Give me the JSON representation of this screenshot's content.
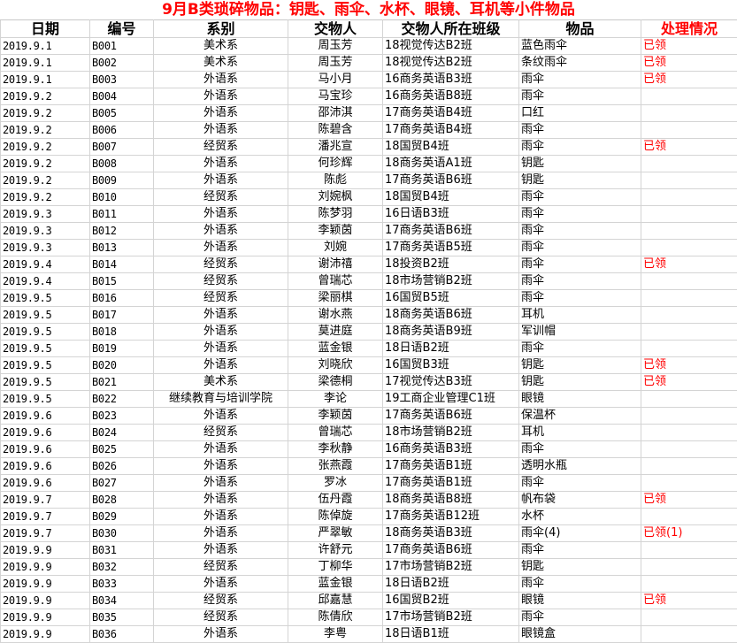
{
  "title": "9月B类琐碎物品：钥匙、雨伞、水杯、眼镜、耳机等小件物品",
  "headers": [
    "日期",
    "编号",
    "系别",
    "交物人",
    "交物人所在班级",
    "物品",
    "处理情况"
  ],
  "accent_color": "#ff0000",
  "rows": [
    [
      "2019.9.1",
      "B001",
      "美术系",
      "周玉芳",
      "18视觉传达B2班",
      "蓝色雨伞",
      "已领"
    ],
    [
      "2019.9.1",
      "B002",
      "美术系",
      "周玉芳",
      "18视觉传达B2班",
      "条纹雨伞",
      "已领"
    ],
    [
      "2019.9.1",
      "B003",
      "外语系",
      "马小月",
      "16商务英语B3班",
      "雨伞",
      "已领"
    ],
    [
      "2019.9.2",
      "B004",
      "外语系",
      "马宝珍",
      "16商务英语B8班",
      "雨伞",
      ""
    ],
    [
      "2019.9.2",
      "B005",
      "外语系",
      "邵沛淇",
      "17商务英语B4班",
      "口红",
      ""
    ],
    [
      "2019.9.2",
      "B006",
      "外语系",
      "陈碧含",
      "17商务英语B4班",
      "雨伞",
      ""
    ],
    [
      "2019.9.2",
      "B007",
      "经贸系",
      "潘兆宣",
      "18国贸B4班",
      "雨伞",
      "已领"
    ],
    [
      "2019.9.2",
      "B008",
      "外语系",
      "何珍辉",
      "18商务英语A1班",
      "钥匙",
      ""
    ],
    [
      "2019.9.2",
      "B009",
      "外语系",
      "陈彪",
      "17商务英语B6班",
      "钥匙",
      ""
    ],
    [
      "2019.9.2",
      "B010",
      "经贸系",
      "刘婉枫",
      "18国贸B4班",
      "雨伞",
      ""
    ],
    [
      "2019.9.3",
      "B011",
      "外语系",
      "陈梦羽",
      "16日语B3班",
      "雨伞",
      ""
    ],
    [
      "2019.9.3",
      "B012",
      "外语系",
      "李颖茵",
      "17商务英语B6班",
      "雨伞",
      ""
    ],
    [
      "2019.9.3",
      "B013",
      "外语系",
      "刘婉",
      "17商务英语B5班",
      "雨伞",
      ""
    ],
    [
      "2019.9.4",
      "B014",
      "经贸系",
      "谢沛禧",
      "18投资B2班",
      "雨伞",
      "已领"
    ],
    [
      "2019.9.4",
      "B015",
      "经贸系",
      "曾瑞芯",
      "18市场营销B2班",
      "雨伞",
      ""
    ],
    [
      "2019.9.5",
      "B016",
      "经贸系",
      "梁丽棋",
      "16国贸B5班",
      "雨伞",
      ""
    ],
    [
      "2019.9.5",
      "B017",
      "外语系",
      "谢水燕",
      "18商务英语B6班",
      "耳机",
      ""
    ],
    [
      "2019.9.5",
      "B018",
      "外语系",
      "莫进庭",
      "18商务英语B9班",
      "军训帽",
      ""
    ],
    [
      "2019.9.5",
      "B019",
      "外语系",
      "蓝金银",
      "18日语B2班",
      "雨伞",
      ""
    ],
    [
      "2019.9.5",
      "B020",
      "外语系",
      "刘晓欣",
      "16国贸B3班",
      "钥匙",
      "已领"
    ],
    [
      "2019.9.5",
      "B021",
      "美术系",
      "梁德桐",
      "17视觉传达B3班",
      "钥匙",
      "已领"
    ],
    [
      "2019.9.5",
      "B022",
      "继续教育与培训学院",
      "李论",
      "19工商企业管理C1班",
      "眼镜",
      ""
    ],
    [
      "2019.9.6",
      "B023",
      "外语系",
      "李颖茵",
      "17商务英语B6班",
      "保温杯",
      ""
    ],
    [
      "2019.9.6",
      "B024",
      "经贸系",
      "曾瑞芯",
      "18市场营销B2班",
      "耳机",
      ""
    ],
    [
      "2019.9.6",
      "B025",
      "外语系",
      "李秋静",
      "16商务英语B3班",
      "雨伞",
      ""
    ],
    [
      "2019.9.6",
      "B026",
      "外语系",
      "张燕霞",
      "17商务英语B1班",
      "透明水瓶",
      ""
    ],
    [
      "2019.9.6",
      "B027",
      "外语系",
      "罗冰",
      "17商务英语B1班",
      "雨伞",
      ""
    ],
    [
      "2019.9.7",
      "B028",
      "外语系",
      "伍丹霞",
      "18商务英语B8班",
      "帆布袋",
      "已领"
    ],
    [
      "2019.9.7",
      "B029",
      "外语系",
      "陈倬旋",
      "17商务英语B12班",
      "水杯",
      ""
    ],
    [
      "2019.9.7",
      "B030",
      "外语系",
      "严翠敏",
      "18商务英语B3班",
      "雨伞(4)",
      "已领(1)"
    ],
    [
      "2019.9.9",
      "B031",
      "外语系",
      "许舒元",
      "17商务英语B6班",
      "雨伞",
      ""
    ],
    [
      "2019.9.9",
      "B032",
      "经贸系",
      "丁柳华",
      "17市场营销B2班",
      "钥匙",
      ""
    ],
    [
      "2019.9.9",
      "B033",
      "外语系",
      "蓝金银",
      "18日语B2班",
      "雨伞",
      ""
    ],
    [
      "2019.9.9",
      "B034",
      "经贸系",
      "邱嘉慧",
      "16国贸B2班",
      "眼镜",
      "已领"
    ],
    [
      "2019.9.9",
      "B035",
      "经贸系",
      "陈倩欣",
      "17市场营销B2班",
      "雨伞",
      ""
    ],
    [
      "2019.9.9",
      "B036",
      "外语系",
      "李粤",
      "18日语B1班",
      "眼镜盒",
      ""
    ]
  ]
}
